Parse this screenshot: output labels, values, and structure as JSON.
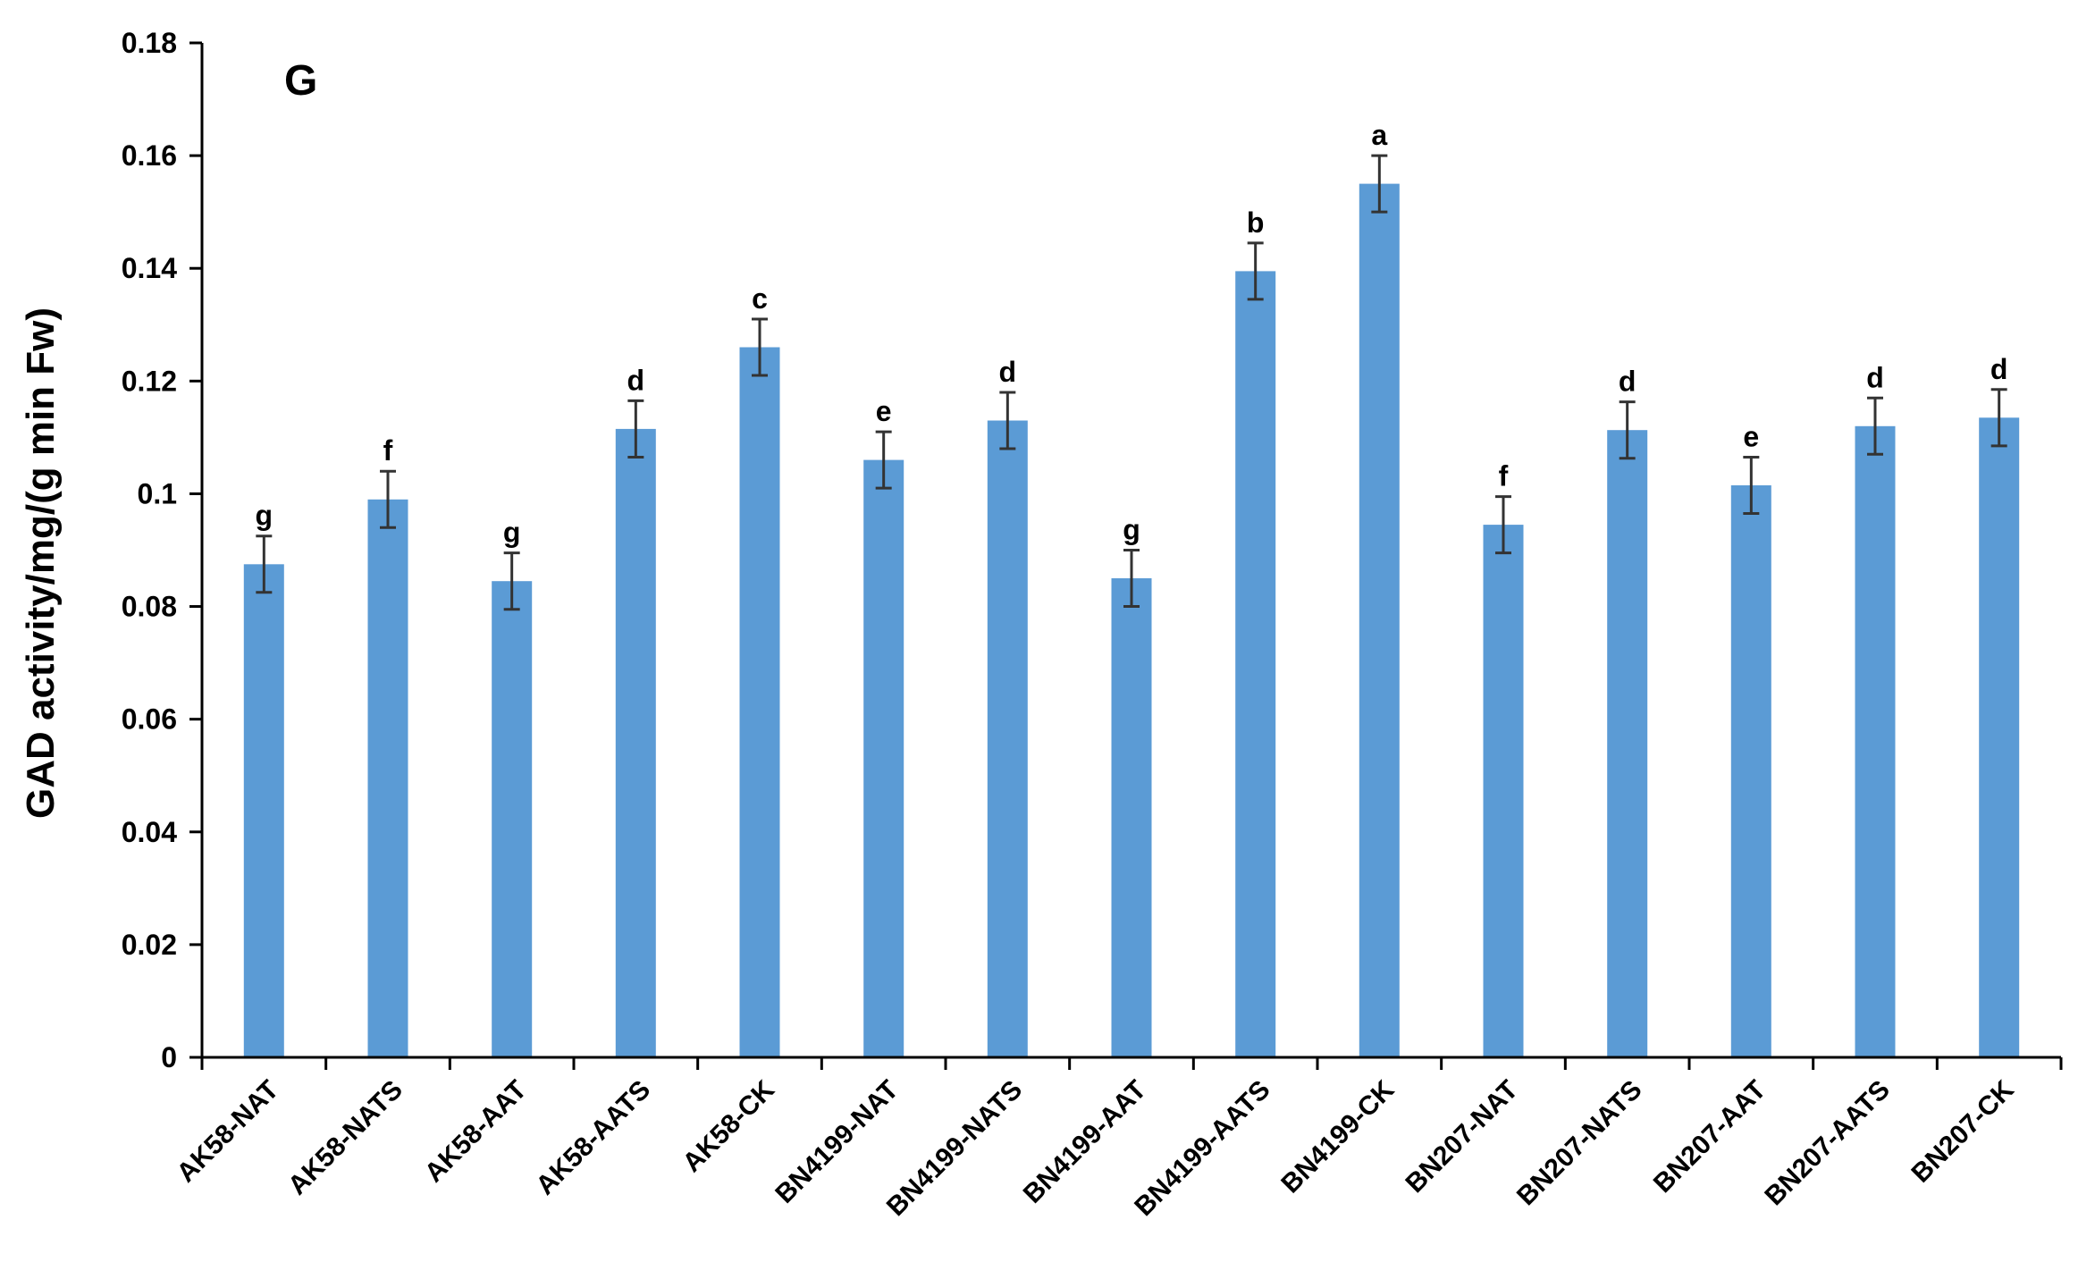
{
  "chart_data": {
    "type": "bar",
    "panel_label": "G",
    "title": "",
    "xlabel": "",
    "ylabel": "GAD activity/mg/(g min Fw)",
    "ylim": [
      0,
      0.18
    ],
    "yticks": [
      "0",
      "0.02",
      "0.04",
      "0.06",
      "0.08",
      "0.1",
      "0.12",
      "0.14",
      "0.16",
      "0.18"
    ],
    "grid": false,
    "legend": "none",
    "bar_color": "#5b9bd5",
    "categories": [
      "AK58-NAT",
      "AK58-NATS",
      "AK58-AAT",
      "AK58-AATS",
      "AK58-CK",
      "BN4199-NAT",
      "BN4199-NATS",
      "BN4199-AAT",
      "BN4199-AATS",
      "BN4199-CK",
      "BN207-NAT",
      "BN207-NATS",
      "BN207-AAT",
      "BN207-AATS",
      "BN207-CK"
    ],
    "values": [
      0.0875,
      0.099,
      0.0845,
      0.1115,
      0.126,
      0.106,
      0.113,
      0.085,
      0.1395,
      0.155,
      0.0945,
      0.1113,
      0.1015,
      0.112,
      0.1135
    ],
    "errors": [
      0.005,
      0.005,
      0.005,
      0.005,
      0.005,
      0.005,
      0.005,
      0.005,
      0.005,
      0.005,
      0.005,
      0.005,
      0.005,
      0.005,
      0.005
    ],
    "significance_letters": [
      "g",
      "f",
      "g",
      "d",
      "c",
      "e",
      "d",
      "g",
      "b",
      "a",
      "f",
      "d",
      "e",
      "d",
      "d"
    ]
  }
}
